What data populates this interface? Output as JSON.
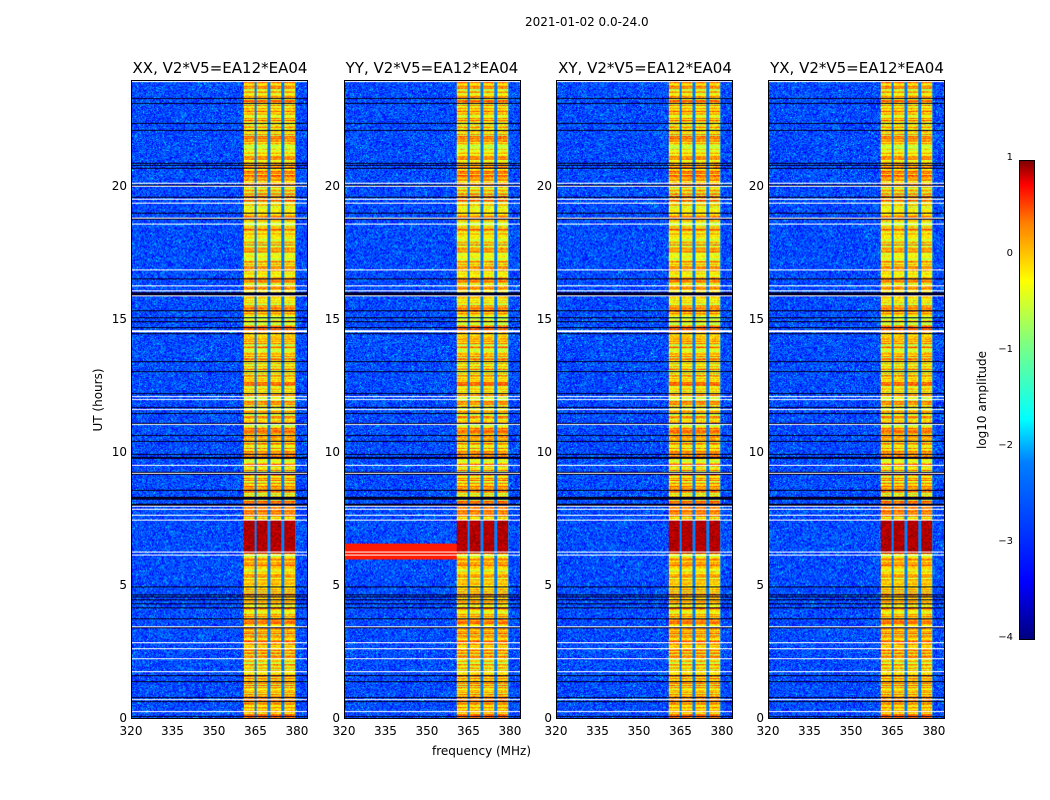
{
  "chart_data": {
    "type": "heatmap",
    "title": "2021-01-02 0.0-24.0",
    "xlabel": "frequency (MHz)",
    "ylabel": "UT (hours)",
    "xlim": [
      320,
      384
    ],
    "ylim": [
      0,
      24
    ],
    "xticks": [
      "320",
      "335",
      "350",
      "365",
      "380"
    ],
    "yticks": [
      "0",
      "5",
      "10",
      "15",
      "20"
    ],
    "panels": [
      {
        "title": "XX, V2*V5=EA12*EA04"
      },
      {
        "title": "YY, V2*V5=EA12*EA04"
      },
      {
        "title": "XY, V2*V5=EA12*EA04"
      },
      {
        "title": "YX, V2*V5=EA12*EA04"
      }
    ],
    "features": {
      "rfi_band_mhz": [
        360.5,
        380.0
      ],
      "strong_rfi_hours": [
        6.2,
        7.5
      ],
      "background_log10": -3.3,
      "band_log10": -0.9
    },
    "colorbar": {
      "label": "log10 amplitude",
      "range": [
        -4,
        1
      ],
      "ticks": [
        "1",
        "0",
        "−1",
        "−2",
        "−3",
        "−4"
      ],
      "colormap": "jet"
    }
  }
}
